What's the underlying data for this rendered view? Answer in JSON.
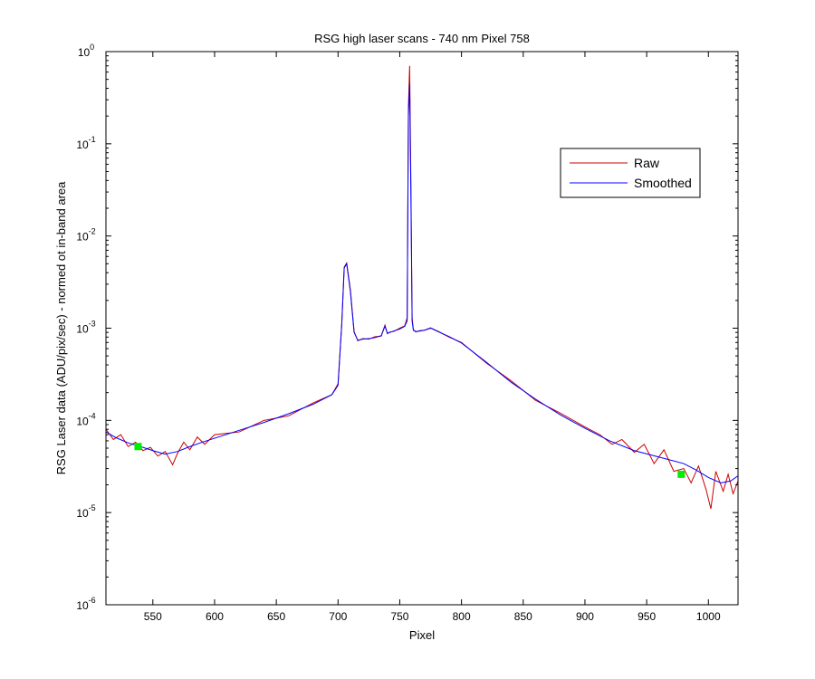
{
  "chart_data": {
    "type": "line",
    "title": "RSG high laser scans  - 740 nm    Pixel 758",
    "xlabel": "Pixel",
    "ylabel": "RSG Laser data (ADU/pix/sec) - normed ot in-band area",
    "xlim": [
      512,
      1024
    ],
    "ylim": [
      1e-06,
      1
    ],
    "yscale": "log",
    "x_ticks": [
      550,
      600,
      650,
      700,
      750,
      800,
      850,
      900,
      950,
      1000
    ],
    "y_ticks": [
      {
        "value": 1e-06,
        "base": "10",
        "exp": "-6"
      },
      {
        "value": 1e-05,
        "base": "10",
        "exp": "-5"
      },
      {
        "value": 0.0001,
        "base": "10",
        "exp": "-4"
      },
      {
        "value": 0.001,
        "base": "10",
        "exp": "-3"
      },
      {
        "value": 0.01,
        "base": "10",
        "exp": "-2"
      },
      {
        "value": 0.1,
        "base": "10",
        "exp": "-1"
      },
      {
        "value": 1,
        "base": "10",
        "exp": "0"
      }
    ],
    "grid": false,
    "legend_position": "top-right",
    "series": [
      {
        "name": "Smoothed",
        "color": "#0000ff",
        "x": [
          512,
          520,
          530,
          540,
          550,
          560,
          570,
          580,
          590,
          600,
          620,
          640,
          660,
          680,
          695,
          700,
          703,
          705,
          707,
          710,
          713,
          716,
          720,
          725,
          730,
          735,
          738,
          740,
          742,
          745,
          750,
          754,
          756,
          757,
          758,
          759,
          760,
          761,
          763,
          766,
          770,
          775,
          777,
          780,
          790,
          800,
          820,
          840,
          860,
          880,
          900,
          920,
          940,
          960,
          980,
          990,
          1000,
          1010,
          1018,
          1024
        ],
        "y": [
          7.5e-05,
          6.5e-05,
          5.7e-05,
          5.2e-05,
          4.7e-05,
          4.3e-05,
          4.6e-05,
          5.2e-05,
          5.8e-05,
          6.4e-05,
          7.8e-05,
          9.5e-05,
          0.000118,
          0.00015,
          0.00019,
          0.00024,
          0.0011,
          0.0045,
          0.005,
          0.0025,
          0.0009,
          0.00074,
          0.00076,
          0.00077,
          0.00079,
          0.00083,
          0.00105,
          0.00088,
          0.0009,
          0.00093,
          0.00098,
          0.00105,
          0.0012,
          0.2,
          0.45,
          0.03,
          0.0012,
          0.00095,
          0.00092,
          0.00093,
          0.00095,
          0.001,
          0.00098,
          0.00093,
          0.00081,
          0.00069,
          0.00043,
          0.00026,
          0.00017,
          0.000115,
          8.2e-05,
          6e-05,
          4.7e-05,
          4e-05,
          3.4e-05,
          2.9e-05,
          2.4e-05,
          2.1e-05,
          2.2e-05,
          2.5e-05
        ]
      },
      {
        "name": "Raw",
        "color": "#cc0000",
        "x": [
          512,
          518,
          524,
          530,
          536,
          542,
          548,
          554,
          560,
          566,
          570,
          575,
          580,
          586,
          592,
          600,
          620,
          640,
          660,
          680,
          695,
          700,
          703,
          705,
          707,
          710,
          713,
          716,
          720,
          725,
          730,
          735,
          738,
          740,
          742,
          745,
          750,
          754,
          756,
          757,
          758,
          759,
          760,
          761,
          763,
          766,
          770,
          775,
          777,
          780,
          790,
          800,
          820,
          840,
          860,
          880,
          900,
          912,
          922,
          930,
          940,
          948,
          956,
          964,
          972,
          980,
          986,
          992,
          998,
          1002,
          1006,
          1012,
          1016,
          1020,
          1024
        ],
        "y": [
          8e-05,
          6.2e-05,
          7e-05,
          5.2e-05,
          5.8e-05,
          4.7e-05,
          5.1e-05,
          4.1e-05,
          4.6e-05,
          3.3e-05,
          4.4e-05,
          5.8e-05,
          4.8e-05,
          6.6e-05,
          5.5e-05,
          7e-05,
          7.5e-05,
          0.0001,
          0.000112,
          0.000155,
          0.00019,
          0.00025,
          0.0011,
          0.0046,
          0.0051,
          0.0026,
          0.00092,
          0.00073,
          0.00077,
          0.00076,
          0.00081,
          0.00082,
          0.00108,
          0.00087,
          0.00091,
          0.00092,
          0.001,
          0.00106,
          0.0013,
          0.25,
          0.7,
          0.04,
          0.0013,
          0.00096,
          0.00091,
          0.00094,
          0.00095,
          0.00101,
          0.00097,
          0.00094,
          0.0008,
          0.0007,
          0.00042,
          0.00027,
          0.000165,
          0.00012,
          8.5e-05,
          7e-05,
          5.5e-05,
          6.2e-05,
          4.5e-05,
          5.5e-05,
          3.4e-05,
          4.8e-05,
          2.8e-05,
          3e-05,
          2.1e-05,
          3.2e-05,
          1.8e-05,
          1.1e-05,
          2.8e-05,
          1.7e-05,
          2.6e-05,
          1.6e-05,
          2.2e-05
        ]
      }
    ],
    "markers": {
      "color": "#00ee00",
      "points": [
        {
          "x": 538,
          "y": 5.2e-05
        },
        {
          "x": 978,
          "y": 2.6e-05
        }
      ]
    }
  }
}
